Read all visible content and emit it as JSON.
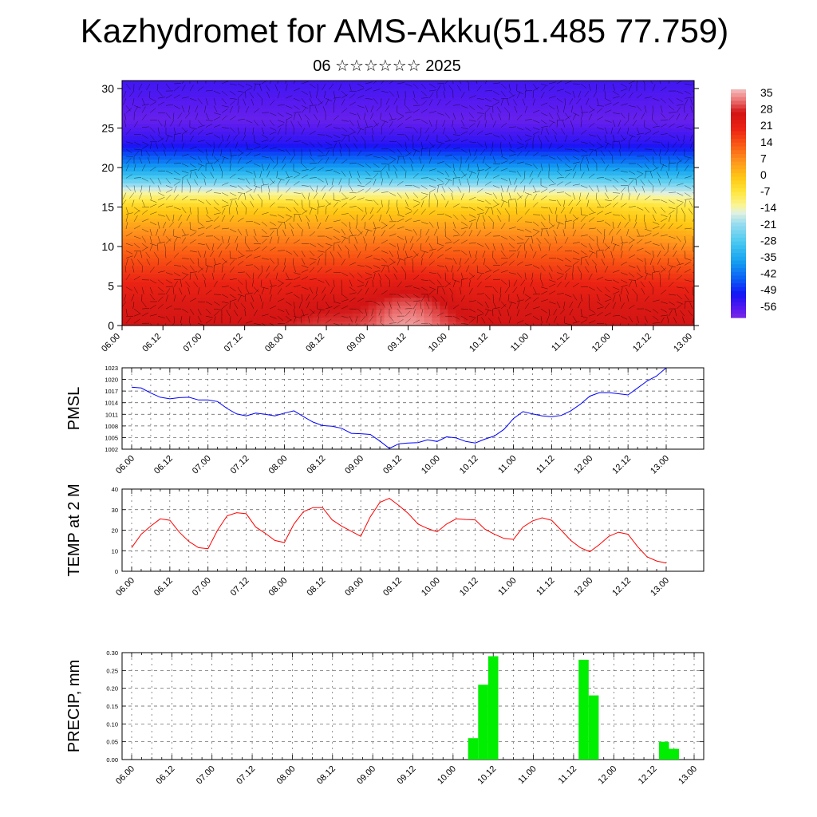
{
  "title": "Kazhydromet for AMS-Akku(51.485 77.759)",
  "subtitle": "06 ☆☆☆☆☆☆ 2025",
  "time_labels": [
    "06.00",
    "06.12",
    "07.00",
    "07.12",
    "08.00",
    "08.12",
    "09.00",
    "09.12",
    "10.00",
    "10.12",
    "11.00",
    "11.12",
    "12.00",
    "12.12",
    "13.00"
  ],
  "colors": {
    "pmsl_line": "#0000ff",
    "temp_line": "#ff0000",
    "precip_bar": "#00ee00",
    "vectors": "#000000"
  },
  "chart_data": [
    {
      "type": "heatmap",
      "name": "upper-air cross-section",
      "ylabel": "",
      "ylim": [
        0,
        31
      ],
      "yticks": [
        0,
        5,
        10,
        15,
        20,
        25,
        30
      ],
      "x": [
        "06.00",
        "06.12",
        "07.00",
        "07.12",
        "08.00",
        "08.12",
        "09.00",
        "09.12",
        "10.00",
        "10.12",
        "11.00",
        "11.12",
        "12.00",
        "12.12",
        "13.00"
      ],
      "colorbar": {
        "labels": [
          35,
          28,
          21,
          14,
          7,
          0,
          -7,
          -14,
          -21,
          -28,
          -35,
          -42,
          -49,
          -56
        ],
        "range": [
          -60,
          38
        ]
      },
      "temperature_profile_by_height": [
        {
          "h": 0,
          "t": 28
        },
        {
          "h": 3,
          "t": 25
        },
        {
          "h": 6,
          "t": 20
        },
        {
          "h": 9,
          "t": 14
        },
        {
          "h": 12,
          "t": 7
        },
        {
          "h": 15,
          "t": -2
        },
        {
          "h": 17,
          "t": -14
        },
        {
          "h": 19,
          "t": -30
        },
        {
          "h": 21,
          "t": -42
        },
        {
          "h": 23,
          "t": -52
        },
        {
          "h": 26,
          "t": -58
        },
        {
          "h": 31,
          "t": -54
        }
      ],
      "surface_warm_maxima": [
        {
          "x": "09.12",
          "t": 36
        },
        {
          "x": "08.12",
          "t": 30
        },
        {
          "x": "07.12",
          "t": 28
        },
        {
          "x": "11.12",
          "t": 27
        }
      ],
      "overlay": "wind vectors"
    },
    {
      "type": "line",
      "ylabel": "PMSL",
      "ylim": [
        1002,
        1023
      ],
      "yticks": [
        1002,
        1005,
        1008,
        1011,
        1014,
        1017,
        1020,
        1023
      ],
      "x_step_hours": 3,
      "values": [
        1018,
        1017.8,
        1016.5,
        1015.4,
        1015,
        1015.3,
        1015.4,
        1014.7,
        1014.7,
        1014.3,
        1012.5,
        1011.1,
        1010.6,
        1011.3,
        1011,
        1010.6,
        1011.3,
        1011.9,
        1010.4,
        1009,
        1008.1,
        1007.9,
        1007.4,
        1006.1,
        1006,
        1005.8,
        1004.1,
        1002.2,
        1003.4,
        1003.6,
        1003.7,
        1004.4,
        1004,
        1005.2,
        1004.9,
        1004,
        1003.6,
        1004.6,
        1005.4,
        1007.1,
        1009.9,
        1011.7,
        1011.1,
        1010.6,
        1010.4,
        1010.7,
        1011.9,
        1013.6,
        1015.7,
        1016.6,
        1016.6,
        1016.3,
        1016,
        1017.8,
        1019.6,
        1020.9,
        1023
      ]
    },
    {
      "type": "line",
      "ylabel": "TEMP at 2 M",
      "ylim": [
        0,
        40
      ],
      "yticks": [
        0,
        10,
        20,
        30,
        40
      ],
      "x_step_hours": 3,
      "values": [
        11.5,
        18,
        22,
        25.5,
        24.8,
        19,
        14.5,
        11.5,
        11,
        20,
        27,
        28.5,
        28,
        21.5,
        18.5,
        15,
        14,
        23,
        29,
        31,
        31,
        25,
        22,
        19.5,
        17,
        26.5,
        33.5,
        35.5,
        32,
        28,
        23,
        20.8,
        19.2,
        23,
        25.5,
        25.2,
        25,
        20.5,
        18,
        16,
        15.5,
        21.5,
        24.5,
        26,
        24.8,
        20,
        15,
        11.5,
        9.5,
        13,
        17,
        19,
        18,
        12,
        7,
        5,
        4
      ]
    },
    {
      "type": "bar",
      "ylabel": "PRECIP, mm",
      "ylim": [
        0,
        0.3
      ],
      "yticks": [
        0.0,
        0.05,
        0.1,
        0.15,
        0.2,
        0.25,
        0.3
      ],
      "x_step_hours": 3,
      "values": [
        0,
        0,
        0,
        0,
        0,
        0,
        0,
        0,
        0,
        0,
        0,
        0,
        0,
        0,
        0,
        0,
        0,
        0,
        0,
        0,
        0,
        0,
        0,
        0,
        0,
        0,
        0,
        0,
        0,
        0,
        0,
        0,
        0,
        0,
        0.06,
        0.21,
        0.29,
        0,
        0,
        0,
        0,
        0,
        0,
        0,
        0,
        0.28,
        0.18,
        0,
        0,
        0,
        0,
        0,
        0,
        0.05,
        0.03,
        0,
        0
      ]
    }
  ]
}
